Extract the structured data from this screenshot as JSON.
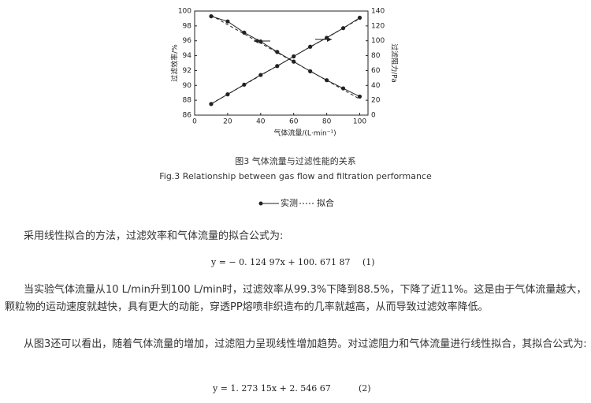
{
  "chart_data": {
    "type": "line",
    "x_label": "气体流量/(L·min⁻¹)",
    "y_label": "过滤效率/%",
    "y2_label": "过滤阻力/Pa",
    "x": [
      10,
      20,
      30,
      40,
      50,
      60,
      70,
      80,
      90,
      100
    ],
    "xlim": [
      0,
      105
    ],
    "xticks": [
      0,
      20,
      40,
      60,
      80,
      100
    ],
    "ylim": [
      86,
      100
    ],
    "yticks": [
      86,
      88,
      90,
      92,
      94,
      96,
      98,
      100
    ],
    "y2lim": [
      0,
      140
    ],
    "y2ticks": [
      0,
      20,
      40,
      60,
      80,
      100,
      120,
      140
    ],
    "series": [
      {
        "color": "#222222",
        "dashed": false,
        "values": [
          99.3,
          98.6,
          97.1,
          95.9,
          94.5,
          93.2,
          91.9,
          90.7,
          89.6,
          88.5
        ]
      },
      {
        "color": "#222222",
        "dashed": true,
        "values": [
          99.42,
          98.17,
          96.92,
          95.67,
          94.42,
          93.17,
          91.92,
          90.67,
          89.42,
          88.17
        ]
      },
      {
        "color": "#222222",
        "dashed": false,
        "axis": "y2",
        "values": [
          15,
          28,
          41,
          54,
          66,
          79,
          92,
          104,
          117,
          131
        ]
      },
      {
        "color": "#222222",
        "dashed": true,
        "axis": "y2",
        "values": [
          15.28,
          28.01,
          40.74,
          53.47,
          66.2,
          78.94,
          91.67,
          104.4,
          117.13,
          129.86
        ]
      }
    ]
  },
  "caption_cn": "图3 气体流量与过滤性能的关系",
  "caption_en": "Fig.3 Relationship between gas flow and filtration performance",
  "legend": [
    "实测",
    "拟合"
  ],
  "paragraphs": [
    "采用线性拟合的方法，过滤效率和气体流量的拟合公式为:",
    "当实验气体流量从10 L/min升到100 L/min时，过滤效率从99.3%下降到88.5%，下降了近11%。这是由于气体流量越大，颗粒物的运动速度就越快，具有更大的动能，穿透PP熔喷非织造布的几率就越高，从而导致过滤效率降低。",
    "从图3还可以看出，随着气体流量的增加，过滤阻力呈现线性增加趋势。对过滤阻力和气体流量进行线性拟合，其拟合公式为:"
  ],
  "equations": [
    {
      "formula": "y = − 0. 124 97x + 100. 671 87",
      "number": "(1)"
    },
    {
      "formula": "y = 1. 273 15x + 2. 546 67",
      "number": "(2)"
    }
  ]
}
